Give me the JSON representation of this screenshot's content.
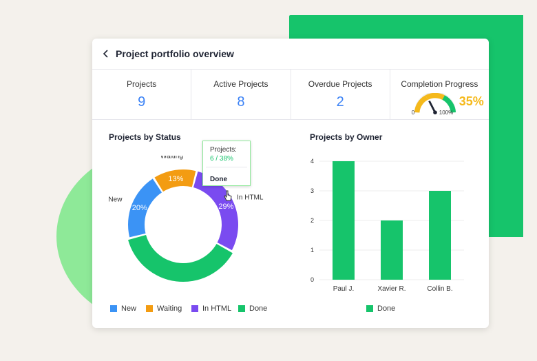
{
  "header": {
    "title": "Project portfolio overview"
  },
  "stats": [
    {
      "label": "Projects",
      "value": "9"
    },
    {
      "label": "Active Projects",
      "value": "8"
    },
    {
      "label": "Overdue Projects",
      "value": "2"
    }
  ],
  "completion": {
    "label": "Completion Progress",
    "value": "35%",
    "min": "0",
    "max": "100%",
    "fraction": 0.35
  },
  "tooltip": {
    "line1": "Projects:",
    "line2": "6 / 38%",
    "line3": "Done"
  },
  "status_chart_title": "Projects by Status",
  "owner_chart_title": "Projects by Owner",
  "colors": {
    "new": "#3b93f5",
    "waiting": "#f39c12",
    "inhtml": "#7a4bf0",
    "done": "#16c46b"
  },
  "chart_data": [
    {
      "type": "pie",
      "title": "Projects by Status",
      "categories": [
        "New",
        "Waiting",
        "In HTML",
        "Done"
      ],
      "values": [
        20,
        13,
        29,
        38
      ],
      "labels": [
        "20%",
        "13%",
        "29%",
        ""
      ],
      "legend": [
        "New",
        "Waiting",
        "In HTML",
        "Done"
      ]
    },
    {
      "type": "bar",
      "title": "Projects by Owner",
      "categories": [
        "Paul J.",
        "Xavier R.",
        "Collin B."
      ],
      "series": [
        {
          "name": "Done",
          "values": [
            4,
            2,
            3
          ]
        }
      ],
      "ylim": [
        0,
        4
      ],
      "yticks": [
        "0",
        "1",
        "2",
        "3",
        "4"
      ]
    }
  ]
}
